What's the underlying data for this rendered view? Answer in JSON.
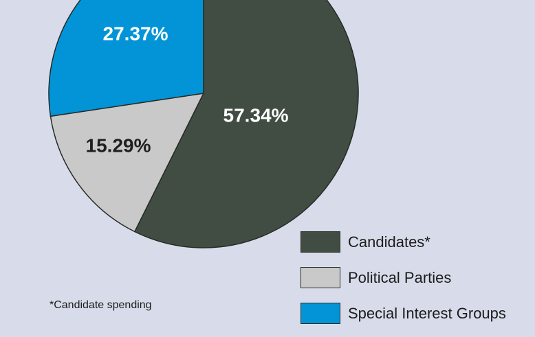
{
  "chart_data": {
    "type": "pie",
    "title": "",
    "slices": [
      {
        "name": "Candidates*",
        "value": 57.34,
        "label": "57.34%",
        "color": "#414d43",
        "label_color": "#ffffff"
      },
      {
        "name": "Political Parties",
        "value": 15.29,
        "label": "15.29%",
        "color": "#c9c9c9",
        "label_color": "#1f1f1f"
      },
      {
        "name": "Special Interest Groups",
        "value": 27.37,
        "label": "27.37%",
        "color": "#0294d6",
        "label_color": "#ffffff"
      }
    ],
    "legend_placement": "bottom-right"
  },
  "legend": {
    "items": [
      {
        "label": "Candidates*",
        "color": "#414d43"
      },
      {
        "label": "Political Parties",
        "color": "#c9c9c9"
      },
      {
        "label": "Special Interest Groups",
        "color": "#0294d6"
      }
    ]
  },
  "footnote": "*Candidate spending",
  "colors": {
    "background": "#d8dcea",
    "outline": "#262a26"
  }
}
